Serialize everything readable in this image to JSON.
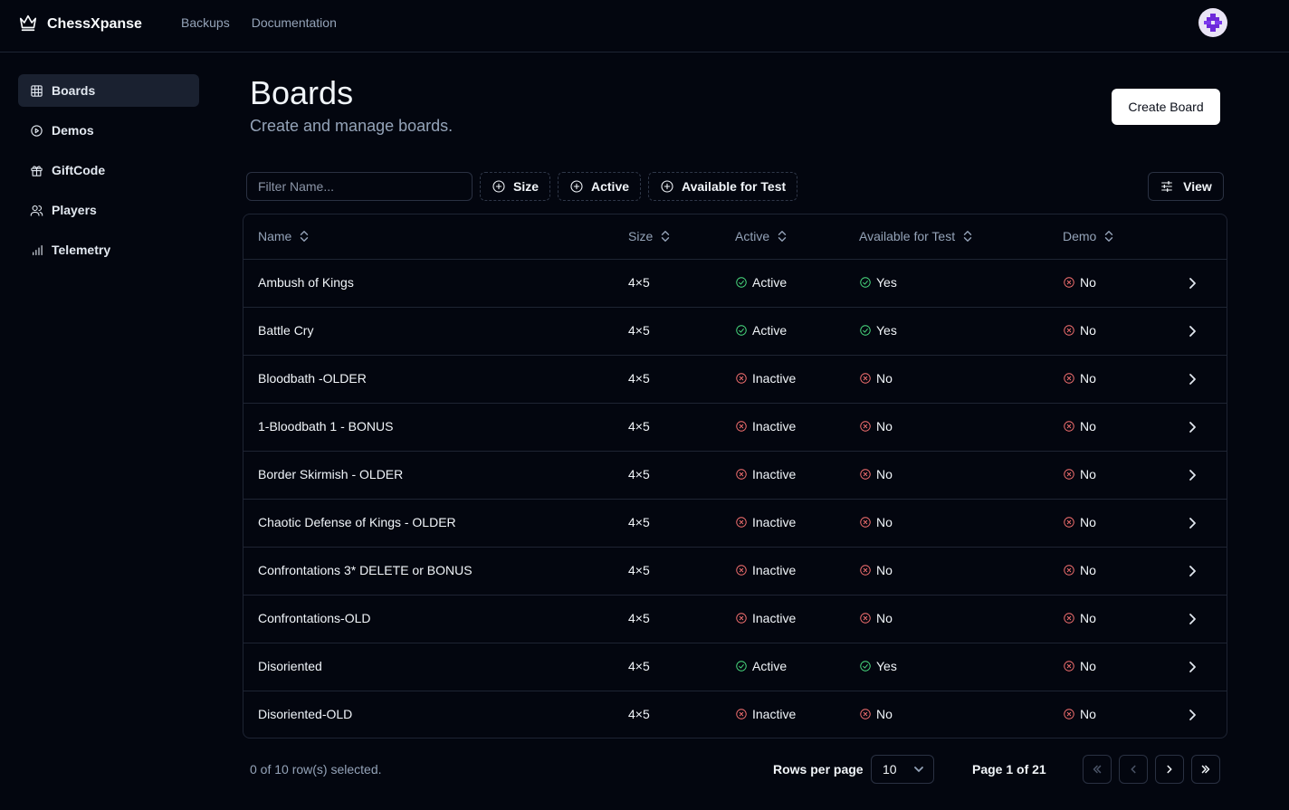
{
  "app": {
    "name": "ChessXpanse"
  },
  "topnav": [
    {
      "label": "Backups"
    },
    {
      "label": "Documentation"
    }
  ],
  "sidebar": {
    "items": [
      {
        "label": "Boards",
        "icon": "grid-icon",
        "active": true
      },
      {
        "label": "Demos",
        "icon": "play-circle-icon",
        "active": false
      },
      {
        "label": "GiftCode",
        "icon": "gift-icon",
        "active": false
      },
      {
        "label": "Players",
        "icon": "users-icon",
        "active": false
      },
      {
        "label": "Telemetry",
        "icon": "bar-chart-icon",
        "active": false
      }
    ]
  },
  "header": {
    "title": "Boards",
    "subtitle": "Create and manage boards.",
    "create_label": "Create Board"
  },
  "toolbar": {
    "filter_placeholder": "Filter Name...",
    "facets": [
      {
        "label": "Size"
      },
      {
        "label": "Active"
      },
      {
        "label": "Available for Test"
      }
    ],
    "view_label": "View"
  },
  "table": {
    "columns": [
      "Name",
      "Size",
      "Active",
      "Available for Test",
      "Demo"
    ],
    "rows": [
      {
        "name": "Ambush of Kings",
        "size": "4×5",
        "active": "Active",
        "test": "Yes",
        "demo": "No"
      },
      {
        "name": "Battle Cry",
        "size": "4×5",
        "active": "Active",
        "test": "Yes",
        "demo": "No"
      },
      {
        "name": "Bloodbath -OLDER",
        "size": "4×5",
        "active": "Inactive",
        "test": "No",
        "demo": "No"
      },
      {
        "name": "1-Bloodbath 1 - BONUS",
        "size": "4×5",
        "active": "Inactive",
        "test": "No",
        "demo": "No"
      },
      {
        "name": "Border Skirmish - OLDER",
        "size": "4×5",
        "active": "Inactive",
        "test": "No",
        "demo": "No"
      },
      {
        "name": "Chaotic Defense of Kings - OLDER",
        "size": "4×5",
        "active": "Inactive",
        "test": "No",
        "demo": "No"
      },
      {
        "name": "Confrontations 3* DELETE or BONUS",
        "size": "4×5",
        "active": "Inactive",
        "test": "No",
        "demo": "No"
      },
      {
        "name": "Confrontations-OLD",
        "size": "4×5",
        "active": "Inactive",
        "test": "No",
        "demo": "No"
      },
      {
        "name": "Disoriented",
        "size": "4×5",
        "active": "Active",
        "test": "Yes",
        "demo": "No"
      },
      {
        "name": "Disoriented-OLD",
        "size": "4×5",
        "active": "Inactive",
        "test": "No",
        "demo": "No"
      }
    ]
  },
  "footer": {
    "selection": "0 of 10 row(s) selected.",
    "rows_per_page_label": "Rows per page",
    "rows_per_page": "10",
    "page_info": "Page 1 of 21"
  },
  "colors": {
    "background": "#03060f",
    "positive": "#4ade80",
    "negative": "#f87171",
    "muted": "#94a3b8"
  }
}
